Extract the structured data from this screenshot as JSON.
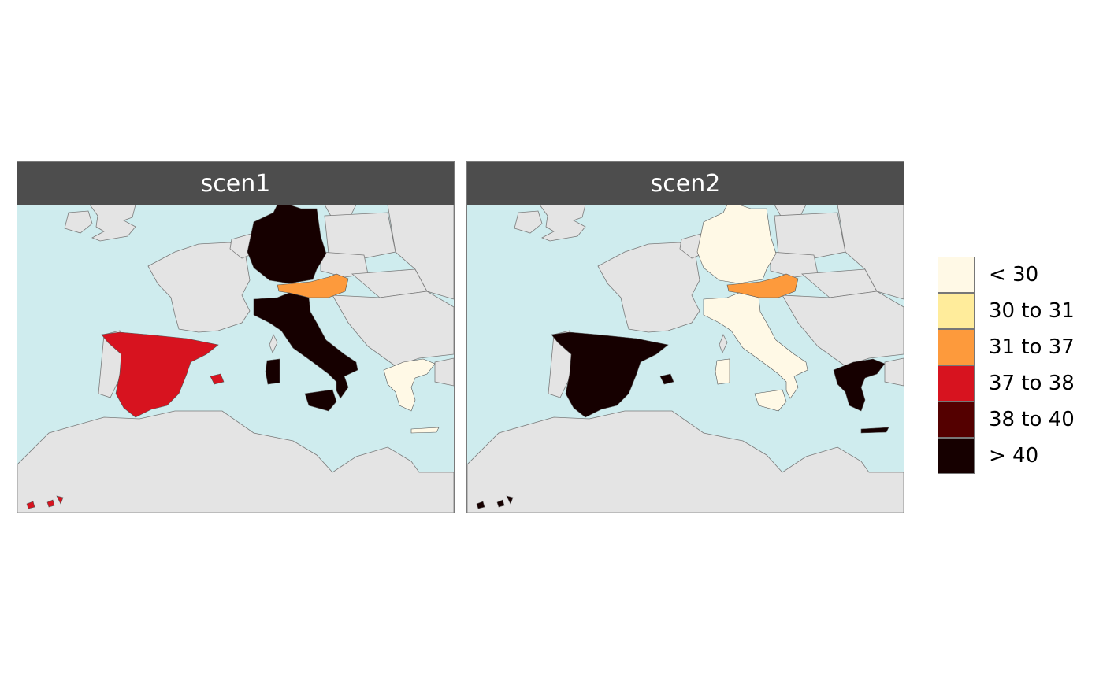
{
  "panels": [
    {
      "title": "scen1",
      "countries": {
        "germany": "> 40",
        "austria": "31 to 37",
        "italy": "> 40",
        "spain": "37 to 38",
        "greece": "< 30"
      }
    },
    {
      "title": "scen2",
      "countries": {
        "germany": "< 30",
        "austria": "31 to 37",
        "italy": "< 30",
        "spain": "> 40",
        "greece": "> 40"
      }
    }
  ],
  "legend": {
    "items": [
      {
        "label": "< 30",
        "color": "#fff9e6"
      },
      {
        "label": "30 to 31",
        "color": "#ffec9b"
      },
      {
        "label": "31 to 37",
        "color": "#fd9a3c"
      },
      {
        "label": "37 to 38",
        "color": "#d7131f"
      },
      {
        "label": "38 to 40",
        "color": "#540000"
      },
      {
        "label": "> 40",
        "color": "#160000"
      }
    ]
  },
  "colors": {
    "sea": "#cfecee",
    "land": "#e4e4e4",
    "border": "#7a7a7a",
    "header": "#4d4d4d"
  }
}
